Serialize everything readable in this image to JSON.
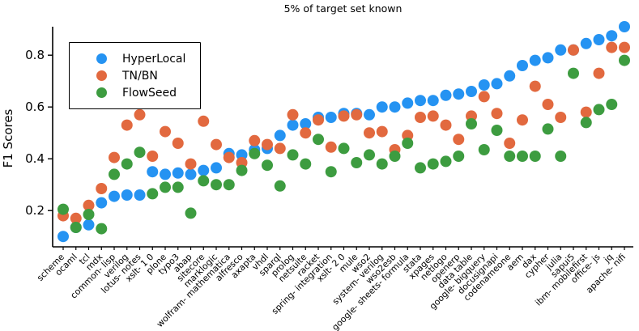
{
  "chart_data": {
    "type": "scatter",
    "title": "5% of target set known",
    "xlabel": "",
    "ylabel": "F1 Scores",
    "ylim": [
      0.06,
      0.91
    ],
    "yticks": [
      0.2,
      0.4,
      0.6,
      0.8
    ],
    "grid": false,
    "legend_position": "upper left",
    "marker": "circle",
    "categories": [
      "scheme",
      "ocaml",
      "tcl",
      "mdx",
      "common- lisp",
      "verilog",
      "lotus- notes",
      "xslt- 1 0",
      "plone",
      "typo3",
      "abap",
      "sitecore",
      "marklogic",
      "wolfram- mathematica",
      "alfresco",
      "axapta",
      "vhdl",
      "sparql",
      "prolog",
      "netsuite",
      "racket",
      "spring- integration",
      "xslt- 2 0",
      "mule",
      "wso2",
      "system- verilog",
      "wso2esb",
      "google- sheets- formula",
      "stata",
      "xpages",
      "netlogo",
      "openerp",
      "data table",
      "google- bigquery",
      "docusignapi",
      "codenameone",
      "aem",
      "dax",
      "cypher",
      "julia",
      "sapui5",
      "ibm- mobilefirst",
      "office- js",
      "jq",
      "apache- nifi"
    ],
    "series": [
      {
        "name": "HyperLocal",
        "color": "#2593f2",
        "values": [
          0.1,
          0.135,
          0.145,
          0.23,
          0.255,
          0.26,
          0.26,
          0.35,
          0.34,
          0.345,
          0.34,
          0.355,
          0.365,
          0.42,
          0.415,
          0.435,
          0.44,
          0.49,
          0.53,
          0.535,
          0.56,
          0.56,
          0.575,
          0.575,
          0.57,
          0.6,
          0.6,
          0.615,
          0.625,
          0.625,
          0.645,
          0.65,
          0.66,
          0.685,
          0.69,
          0.72,
          0.76,
          0.78,
          0.79,
          0.82,
          0.82,
          0.845,
          0.86,
          0.875,
          0.91
        ]
      },
      {
        "name": "TN/BN",
        "color": "#e2693f",
        "values": [
          0.18,
          0.17,
          0.22,
          0.285,
          0.405,
          0.53,
          0.57,
          0.41,
          0.505,
          0.46,
          0.38,
          0.545,
          0.455,
          0.405,
          0.385,
          0.47,
          0.455,
          0.44,
          0.57,
          0.5,
          0.55,
          0.445,
          0.565,
          0.57,
          0.5,
          0.505,
          0.435,
          0.49,
          0.56,
          0.565,
          0.53,
          0.475,
          0.565,
          0.64,
          0.575,
          0.46,
          0.55,
          0.68,
          0.61,
          0.56,
          0.82,
          0.58,
          0.73,
          0.83,
          0.83
        ]
      },
      {
        "name": "FlowSeed",
        "color": "#3d9c40",
        "values": [
          0.205,
          0.135,
          0.185,
          0.13,
          0.34,
          0.38,
          0.425,
          0.265,
          0.29,
          0.29,
          0.19,
          0.315,
          0.3,
          0.3,
          0.355,
          0.42,
          0.375,
          0.295,
          0.415,
          0.38,
          0.475,
          0.35,
          0.44,
          0.385,
          0.415,
          0.38,
          0.41,
          0.46,
          0.365,
          0.38,
          0.39,
          0.41,
          0.535,
          0.435,
          0.51,
          0.41,
          0.41,
          0.41,
          0.515,
          0.41,
          0.73,
          0.54,
          0.59,
          0.61,
          0.78
        ]
      }
    ]
  }
}
